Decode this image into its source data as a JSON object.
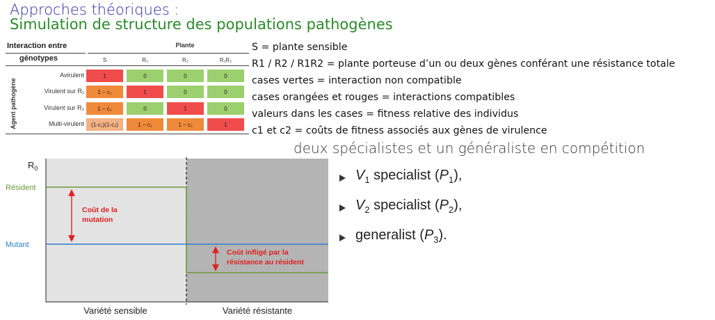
{
  "title_line1": "Approches théoriques :",
  "title_line2": "Simulation de structure des populations pathogènes",
  "table": {
    "header_line1": "Interaction entre",
    "header_line2": "génotypes",
    "plant_header": "Plante",
    "side_label": "Agent pathogène",
    "columns": [
      "S",
      "R₁",
      "R₂",
      "R₁R₂"
    ],
    "rows": [
      {
        "label": "Avirulent",
        "cells": [
          "1",
          "0",
          "0",
          "0"
        ]
      },
      {
        "label": "Virulent sur R₁",
        "cells": [
          "1 − c₁",
          "1",
          "0",
          "0"
        ]
      },
      {
        "label": "Virulent sur R₂",
        "cells": [
          "1 − c₂",
          "0",
          "1",
          "0"
        ]
      },
      {
        "label": "Multi-virulent",
        "cells": [
          "(1-c₁)(1-c₂)",
          "1 − c₂",
          "1 − c₁",
          "1"
        ]
      }
    ]
  },
  "legend": [
    "S = plante sensible",
    "R1 / R2 / R1R2 = plante porteuse d’un ou deux gènes conférant une résistance totale",
    "cases vertes = interaction non compatible",
    "cases orangées et rouges = interactions compatibles",
    "valeurs dans les cases = fitness relative des individus",
    "c1 et c2 = coûts de fitness associés aux gènes de virulence"
  ],
  "subtitle": "deux spécialistes et un généraliste en compétition",
  "bullets": [
    {
      "main": "V",
      "sub": "1",
      "text": " specialist (",
      "paren_main": "P",
      "paren_sub": "1",
      "end": "),"
    },
    {
      "main": "V",
      "sub": "2",
      "text": " specialist (",
      "paren_main": "P",
      "paren_sub": "2",
      "end": "),"
    },
    {
      "main": "",
      "sub": "",
      "text": "generalist (",
      "paren_main": "P",
      "paren_sub": "3",
      "end": ")."
    }
  ],
  "diagram": {
    "y_label": "R",
    "y_label_sub": "0",
    "resident_label": "Résident",
    "mutant_label": "Mutant",
    "cost_mutation_line1": "Coût de la",
    "cost_mutation_line2": "mutation",
    "cost_resistance_line1": "Coût infligé par la",
    "cost_resistance_line2": "résistance au résident",
    "x_left": "Variété sensible",
    "x_right": "Variété résistante",
    "colors": {
      "resident": "#6a9a3a",
      "mutant": "#2f7fd0",
      "annotation": "#e02020",
      "bg_left": "#e3e3e3",
      "bg_right": "#b4b4b4"
    }
  }
}
